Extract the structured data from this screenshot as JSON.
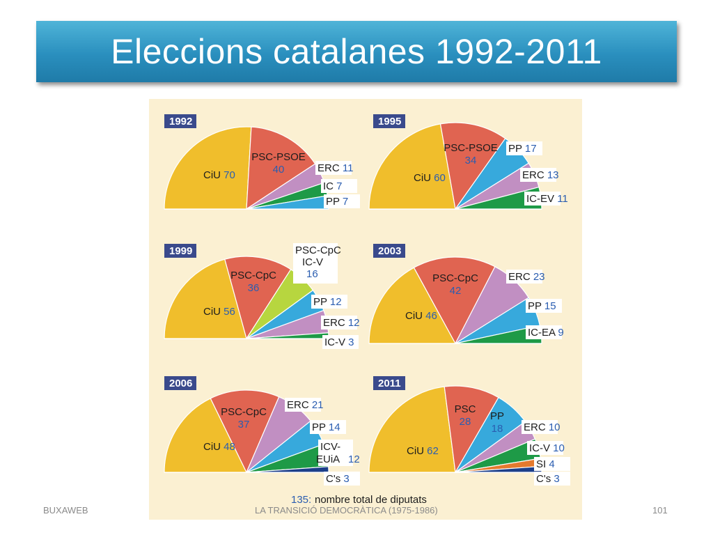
{
  "title": "Eleccions catalanes 1992-2011",
  "footer": {
    "left": "BUXAWEB",
    "center": "LA TRANSICIÓ DEMOCRÀTICA (1975-1986)",
    "right": "101"
  },
  "legend_note": {
    "number": "135:",
    "text": "nombre total de diputats"
  },
  "colors": {
    "CiU": "#f0be2c",
    "PSC": "#e06451",
    "third": "#c18fc2",
    "PP": "#37a9dc",
    "IC": "#1e9a47",
    "ICV_light": "#b7d63f",
    "SI": "#e57a2e",
    "Cs": "#1d3f8a",
    "year_badge": "#3a4a8c",
    "panel_bg": "#fbf0d2"
  },
  "chart_data": [
    {
      "type": "pie",
      "subtype": "half-donut parliament",
      "title": "1992",
      "series": [
        {
          "name": "CiU",
          "value": 70,
          "color": "CiU"
        },
        {
          "name": "PSC-PSOE",
          "value": 40,
          "color": "PSC"
        },
        {
          "name": "ERC",
          "value": 11,
          "color": "third"
        },
        {
          "name": "IC",
          "value": 7,
          "color": "IC"
        },
        {
          "name": "PP",
          "value": 7,
          "color": "PP"
        }
      ]
    },
    {
      "type": "pie",
      "subtype": "half-donut parliament",
      "title": "1995",
      "series": [
        {
          "name": "CiU",
          "value": 60,
          "color": "CiU"
        },
        {
          "name": "PSC-PSOE",
          "value": 34,
          "color": "PSC"
        },
        {
          "name": "PP",
          "value": 17,
          "color": "PP"
        },
        {
          "name": "ERC",
          "value": 13,
          "color": "third"
        },
        {
          "name": "IC-EV",
          "value": 11,
          "color": "IC"
        }
      ]
    },
    {
      "type": "pie",
      "subtype": "half-donut parliament",
      "title": "1999",
      "series": [
        {
          "name": "CiU",
          "value": 56,
          "color": "CiU"
        },
        {
          "name": "PSC-CpC",
          "value": 36,
          "color": "PSC"
        },
        {
          "name": "PSC-CpC IC-V",
          "value": 16,
          "color": "ICV_light"
        },
        {
          "name": "PP",
          "value": 12,
          "color": "PP"
        },
        {
          "name": "ERC",
          "value": 12,
          "color": "third"
        },
        {
          "name": "IC-V",
          "value": 3,
          "color": "IC"
        }
      ]
    },
    {
      "type": "pie",
      "subtype": "half-donut parliament",
      "title": "2003",
      "series": [
        {
          "name": "CiU",
          "value": 46,
          "color": "CiU"
        },
        {
          "name": "PSC-CpC",
          "value": 42,
          "color": "PSC"
        },
        {
          "name": "ERC",
          "value": 23,
          "color": "third"
        },
        {
          "name": "PP",
          "value": 15,
          "color": "PP"
        },
        {
          "name": "IC-EA",
          "value": 9,
          "color": "IC"
        }
      ]
    },
    {
      "type": "pie",
      "subtype": "half-donut parliament",
      "title": "2006",
      "series": [
        {
          "name": "CiU",
          "value": 48,
          "color": "CiU"
        },
        {
          "name": "PSC-CpC",
          "value": 37,
          "color": "PSC"
        },
        {
          "name": "ERC",
          "value": 21,
          "color": "third"
        },
        {
          "name": "PP",
          "value": 14,
          "color": "PP"
        },
        {
          "name": "ICV-EUiA",
          "value": 12,
          "color": "IC"
        },
        {
          "name": "C's",
          "value": 3,
          "color": "Cs"
        }
      ]
    },
    {
      "type": "pie",
      "subtype": "half-donut parliament",
      "title": "2011",
      "series": [
        {
          "name": "CiU",
          "value": 62,
          "color": "CiU"
        },
        {
          "name": "PSC",
          "value": 28,
          "color": "PSC"
        },
        {
          "name": "PP",
          "value": 18,
          "color": "PP"
        },
        {
          "name": "ERC",
          "value": 10,
          "color": "third"
        },
        {
          "name": "IC-V",
          "value": 10,
          "color": "IC"
        },
        {
          "name": "SI",
          "value": 4,
          "color": "SI"
        },
        {
          "name": "C's",
          "value": 3,
          "color": "Cs"
        }
      ]
    }
  ]
}
